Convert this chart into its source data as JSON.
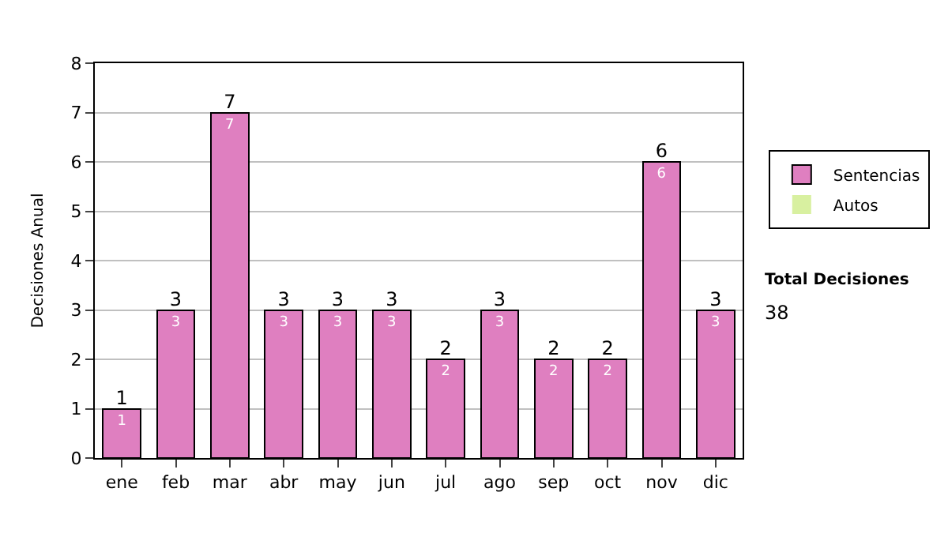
{
  "chart_data": {
    "type": "bar",
    "ylabel": "Decisiones Anual",
    "categories": [
      "ene",
      "feb",
      "mar",
      "abr",
      "may",
      "jun",
      "jul",
      "ago",
      "sep",
      "oct",
      "nov",
      "dic"
    ],
    "series": [
      {
        "name": "Sentencias",
        "color": "#df7fc0",
        "values": [
          1,
          3,
          7,
          3,
          3,
          3,
          2,
          3,
          2,
          2,
          6,
          3
        ],
        "value_labels": [
          "1",
          "3",
          "7",
          "3",
          "3",
          "3",
          "2",
          "3",
          "2",
          "2",
          "6",
          "3"
        ]
      },
      {
        "name": "Autos",
        "color": "#d8f0a0",
        "values": [
          0,
          0,
          0,
          0,
          0,
          0,
          0,
          0,
          0,
          0,
          0,
          0
        ]
      }
    ],
    "stacked": true,
    "totals": [
      "1",
      "3",
      "7",
      "3",
      "3",
      "3",
      "2",
      "3",
      "2",
      "2",
      "6",
      "3"
    ],
    "ylim": [
      0,
      8
    ],
    "yticks": [
      0,
      1,
      2,
      3,
      4,
      5,
      6,
      7,
      8
    ],
    "grid": "y",
    "legend": "right",
    "annotations": [
      "Total Decisiones",
      "38"
    ]
  }
}
